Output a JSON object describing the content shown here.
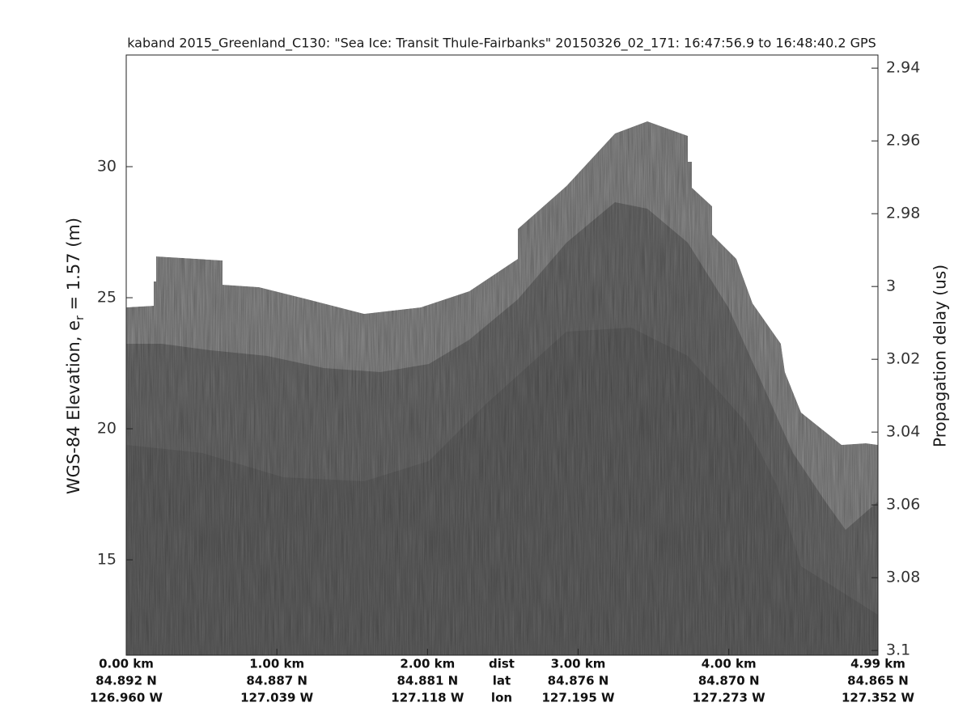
{
  "chart_data": {
    "type": "echogram",
    "title": "kaband 2015_Greenland_C130: \"Sea Ice: Transit Thule-Fairbanks\"  20150326_02_171: 16:47:56.9 to 16:48:40.2 GPS",
    "ylabel": {
      "text": "WGS-84 Elevation, e",
      "subscript": "r",
      "rest": " = 1.57 (m)"
    },
    "y2label": "Propagation delay (us)",
    "xlim": [
      0,
      4.99
    ],
    "ylim": [
      11.36,
      34.26
    ],
    "y2lim": [
      3.1013,
      2.9364
    ],
    "yticks": [
      15,
      20,
      25,
      30
    ],
    "y2ticks": [
      2.94,
      2.96,
      2.98,
      3,
      3.02,
      3.04,
      3.06,
      3.08,
      3.1
    ],
    "xticks": [
      {
        "value": 0,
        "label": "0.00 km"
      },
      {
        "value": 1,
        "label": "1.00 km"
      },
      {
        "value": 2,
        "label": "2.00 km"
      },
      {
        "value": 3,
        "label": "3.00 km"
      },
      {
        "value": 4,
        "label": "4.00 km"
      },
      {
        "value": 4.99,
        "label": "4.99 km"
      }
    ],
    "xtick_lat": [
      "84.892 N",
      "84.887 N",
      "84.881 N",
      "84.876 N",
      "84.870 N",
      "84.865 N"
    ],
    "xtick_lon": [
      "126.960 W",
      "127.039 W",
      "127.118 W",
      "127.195 W",
      "127.273 W",
      "127.352 W"
    ],
    "xtick_row_labels": [
      "dist",
      "lat",
      "lon"
    ]
  }
}
